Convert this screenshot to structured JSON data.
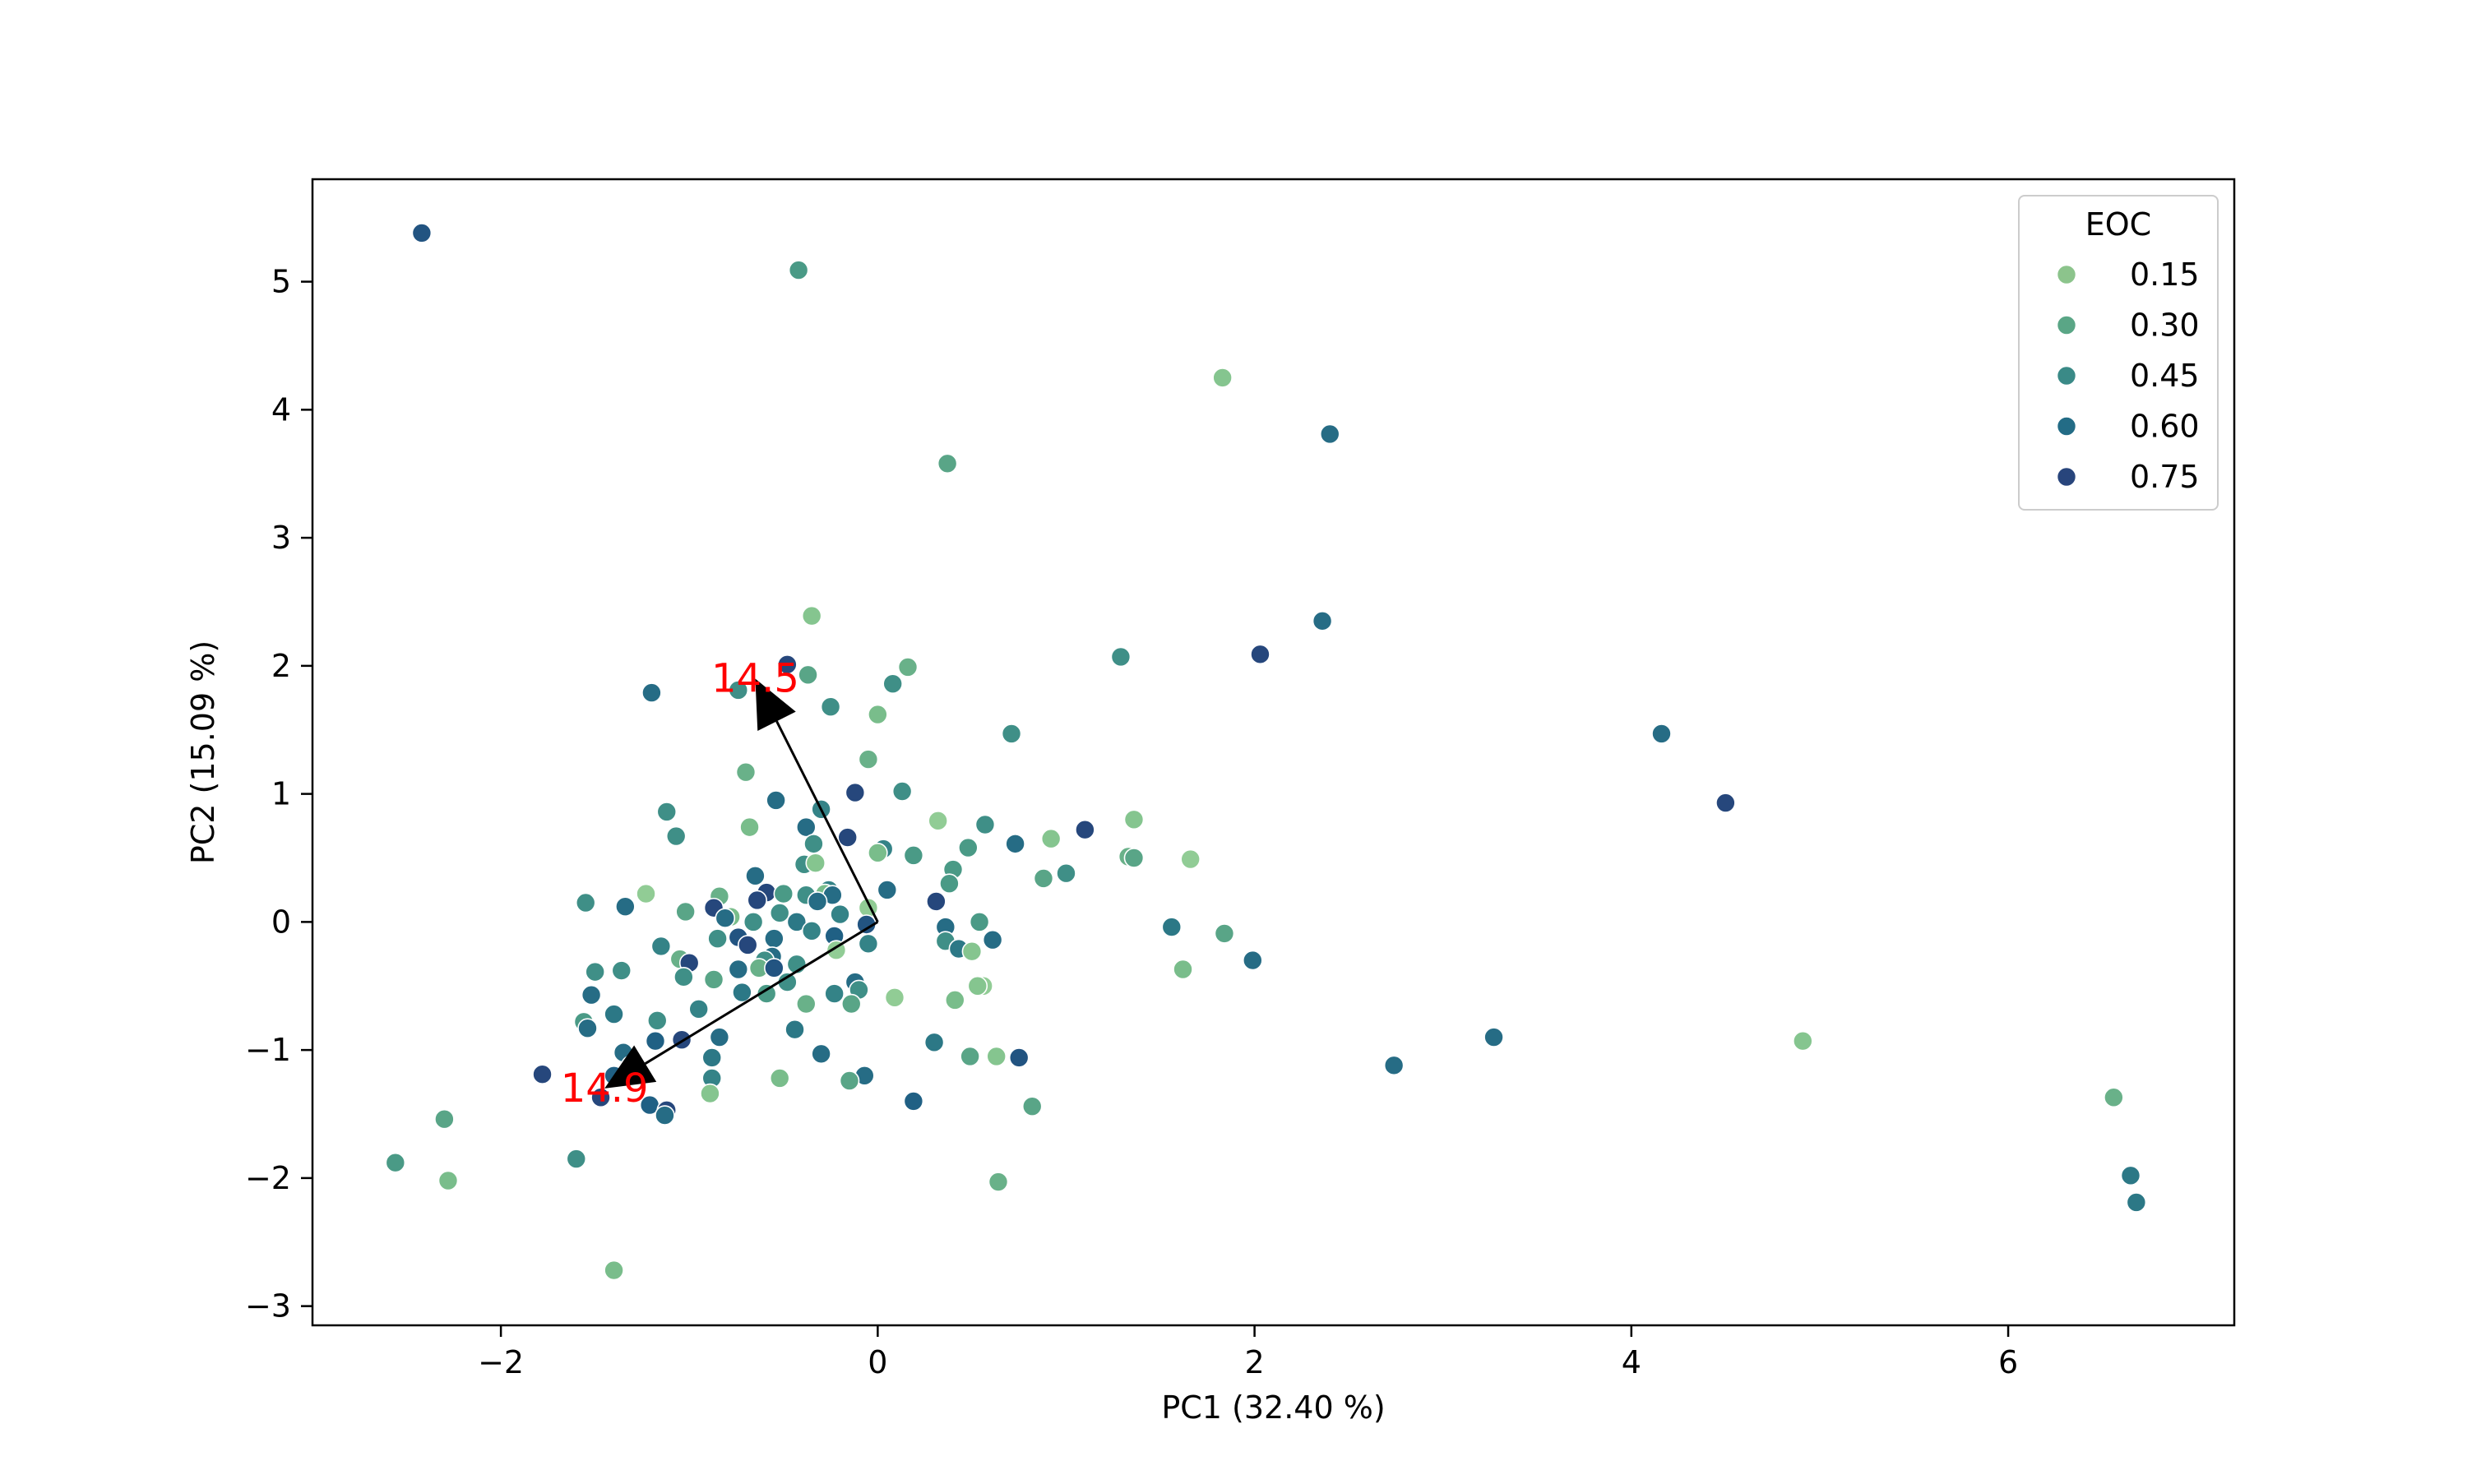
{
  "chart_data": {
    "type": "scatter",
    "xlabel": "PC1 (32.40 %)",
    "ylabel": "PC2 (15.09 %)",
    "xlim": [
      -3.0,
      7.2
    ],
    "ylim": [
      -3.15,
      5.8
    ],
    "xticks": [
      -2,
      0,
      2,
      4,
      6
    ],
    "yticks": [
      -3,
      -2,
      -1,
      0,
      1,
      2,
      3,
      4,
      5
    ],
    "xtick_labels": [
      "−2",
      "0",
      "2",
      "4",
      "6"
    ],
    "ytick_labels": [
      "−3",
      "−2",
      "−1",
      "0",
      "1",
      "2",
      "3",
      "4",
      "5"
    ],
    "grid": false,
    "legend": {
      "title": "EOC",
      "placement": "top-right",
      "entries": [
        {
          "label": "0.15",
          "value": 0.15,
          "color": "#8cc48c"
        },
        {
          "label": "0.30",
          "value": 0.3,
          "color": "#5aa686"
        },
        {
          "label": "0.45",
          "value": 0.45,
          "color": "#3a8a87"
        },
        {
          "label": "0.60",
          "value": 0.6,
          "color": "#236c86"
        },
        {
          "label": "0.75",
          "value": 0.75,
          "color": "#28457c"
        }
      ]
    },
    "colormap": {
      "range": [
        0.1,
        0.8
      ],
      "stops": [
        "#9dd39a",
        "#7cbf8b",
        "#4f9e86",
        "#2f7f87",
        "#1f5e84",
        "#2a3a78"
      ]
    },
    "loading_vectors": [
      {
        "label": "14.5",
        "from": [
          0,
          0
        ],
        "to": [
          -0.65,
          1.9
        ],
        "label_color": "#ff0000"
      },
      {
        "label": "14.9",
        "from": [
          0,
          0
        ],
        "to": [
          -1.45,
          -1.3
        ],
        "label_color": "#ff0000"
      }
    ],
    "points": [
      {
        "x": -2.42,
        "y": 5.38,
        "eoc": 0.7
      },
      {
        "x": -0.42,
        "y": 5.09,
        "eoc": 0.4
      },
      {
        "x": 1.83,
        "y": 4.25,
        "eoc": 0.2
      },
      {
        "x": 2.4,
        "y": 3.81,
        "eoc": 0.6
      },
      {
        "x": 0.37,
        "y": 3.58,
        "eoc": 0.35
      },
      {
        "x": -0.35,
        "y": 2.39,
        "eoc": 0.2
      },
      {
        "x": 2.36,
        "y": 2.35,
        "eoc": 0.6
      },
      {
        "x": 2.03,
        "y": 2.09,
        "eoc": 0.75
      },
      {
        "x": 1.29,
        "y": 2.07,
        "eoc": 0.45
      },
      {
        "x": -0.48,
        "y": 2.01,
        "eoc": 0.75
      },
      {
        "x": 0.16,
        "y": 1.99,
        "eoc": 0.3
      },
      {
        "x": -0.37,
        "y": 1.93,
        "eoc": 0.35
      },
      {
        "x": 0.08,
        "y": 1.86,
        "eoc": 0.45
      },
      {
        "x": -1.2,
        "y": 1.79,
        "eoc": 0.6
      },
      {
        "x": -0.74,
        "y": 1.81,
        "eoc": 0.45
      },
      {
        "x": -0.25,
        "y": 1.68,
        "eoc": 0.45
      },
      {
        "x": 0.0,
        "y": 1.62,
        "eoc": 0.25
      },
      {
        "x": 0.71,
        "y": 1.47,
        "eoc": 0.45
      },
      {
        "x": 4.16,
        "y": 1.47,
        "eoc": 0.6
      },
      {
        "x": -0.05,
        "y": 1.27,
        "eoc": 0.3
      },
      {
        "x": -0.7,
        "y": 1.17,
        "eoc": 0.3
      },
      {
        "x": 0.13,
        "y": 1.02,
        "eoc": 0.45
      },
      {
        "x": -0.12,
        "y": 1.01,
        "eoc": 0.75
      },
      {
        "x": -0.54,
        "y": 0.95,
        "eoc": 0.6
      },
      {
        "x": 4.5,
        "y": 0.93,
        "eoc": 0.75
      },
      {
        "x": -1.12,
        "y": 0.86,
        "eoc": 0.45
      },
      {
        "x": -0.3,
        "y": 0.88,
        "eoc": 0.5
      },
      {
        "x": 1.36,
        "y": 0.8,
        "eoc": 0.2
      },
      {
        "x": 0.32,
        "y": 0.79,
        "eoc": 0.15
      },
      {
        "x": 0.57,
        "y": 0.76,
        "eoc": 0.45
      },
      {
        "x": -0.38,
        "y": 0.74,
        "eoc": 0.6
      },
      {
        "x": -0.68,
        "y": 0.74,
        "eoc": 0.25
      },
      {
        "x": 1.1,
        "y": 0.72,
        "eoc": 0.75
      },
      {
        "x": -1.07,
        "y": 0.67,
        "eoc": 0.45
      },
      {
        "x": -0.16,
        "y": 0.66,
        "eoc": 0.75
      },
      {
        "x": 0.92,
        "y": 0.65,
        "eoc": 0.2
      },
      {
        "x": 0.73,
        "y": 0.61,
        "eoc": 0.6
      },
      {
        "x": -0.34,
        "y": 0.61,
        "eoc": 0.45
      },
      {
        "x": 0.48,
        "y": 0.58,
        "eoc": 0.4
      },
      {
        "x": 0.03,
        "y": 0.57,
        "eoc": 0.5
      },
      {
        "x": 0.0,
        "y": 0.54,
        "eoc": 0.25
      },
      {
        "x": 0.19,
        "y": 0.52,
        "eoc": 0.4
      },
      {
        "x": 1.33,
        "y": 0.51,
        "eoc": 0.3
      },
      {
        "x": 1.36,
        "y": 0.5,
        "eoc": 0.35
      },
      {
        "x": 1.66,
        "y": 0.49,
        "eoc": 0.15
      },
      {
        "x": -0.39,
        "y": 0.45,
        "eoc": 0.45
      },
      {
        "x": -0.33,
        "y": 0.46,
        "eoc": 0.2
      },
      {
        "x": 0.4,
        "y": 0.41,
        "eoc": 0.4
      },
      {
        "x": 1.0,
        "y": 0.38,
        "eoc": 0.45
      },
      {
        "x": -0.65,
        "y": 0.36,
        "eoc": 0.6
      },
      {
        "x": 0.88,
        "y": 0.34,
        "eoc": 0.35
      },
      {
        "x": 0.38,
        "y": 0.3,
        "eoc": 0.4
      },
      {
        "x": -0.26,
        "y": 0.25,
        "eoc": 0.5
      },
      {
        "x": 0.05,
        "y": 0.25,
        "eoc": 0.6
      },
      {
        "x": -0.59,
        "y": 0.23,
        "eoc": 0.75
      },
      {
        "x": -0.5,
        "y": 0.22,
        "eoc": 0.4
      },
      {
        "x": -0.28,
        "y": 0.22,
        "eoc": 0.25
      },
      {
        "x": -0.38,
        "y": 0.21,
        "eoc": 0.45
      },
      {
        "x": -0.24,
        "y": 0.21,
        "eoc": 0.6
      },
      {
        "x": -1.23,
        "y": 0.22,
        "eoc": 0.15
      },
      {
        "x": -0.84,
        "y": 0.2,
        "eoc": 0.3
      },
      {
        "x": -0.64,
        "y": 0.17,
        "eoc": 0.75
      },
      {
        "x": -0.32,
        "y": 0.16,
        "eoc": 0.6
      },
      {
        "x": 0.31,
        "y": 0.16,
        "eoc": 0.75
      },
      {
        "x": -1.55,
        "y": 0.15,
        "eoc": 0.45
      },
      {
        "x": -1.34,
        "y": 0.12,
        "eoc": 0.6
      },
      {
        "x": -0.87,
        "y": 0.11,
        "eoc": 0.75
      },
      {
        "x": -0.05,
        "y": 0.11,
        "eoc": 0.15
      },
      {
        "x": -1.02,
        "y": 0.08,
        "eoc": 0.35
      },
      {
        "x": -0.52,
        "y": 0.07,
        "eoc": 0.45
      },
      {
        "x": -0.2,
        "y": 0.06,
        "eoc": 0.5
      },
      {
        "x": -0.78,
        "y": 0.04,
        "eoc": 0.25
      },
      {
        "x": -0.81,
        "y": 0.03,
        "eoc": 0.6
      },
      {
        "x": -0.66,
        "y": 0.0,
        "eoc": 0.45
      },
      {
        "x": -0.43,
        "y": 0.0,
        "eoc": 0.55
      },
      {
        "x": 0.54,
        "y": 0.0,
        "eoc": 0.4
      },
      {
        "x": -0.06,
        "y": -0.02,
        "eoc": 0.7
      },
      {
        "x": 0.36,
        "y": -0.04,
        "eoc": 0.6
      },
      {
        "x": 1.56,
        "y": -0.04,
        "eoc": 0.55
      },
      {
        "x": -0.35,
        "y": -0.07,
        "eoc": 0.5
      },
      {
        "x": 1.84,
        "y": -0.09,
        "eoc": 0.35
      },
      {
        "x": -0.23,
        "y": -0.11,
        "eoc": 0.65
      },
      {
        "x": -0.74,
        "y": -0.12,
        "eoc": 0.7
      },
      {
        "x": -0.55,
        "y": -0.13,
        "eoc": 0.6
      },
      {
        "x": -0.85,
        "y": -0.13,
        "eoc": 0.45
      },
      {
        "x": 0.61,
        "y": -0.14,
        "eoc": 0.6
      },
      {
        "x": 0.36,
        "y": -0.15,
        "eoc": 0.45
      },
      {
        "x": -0.05,
        "y": -0.17,
        "eoc": 0.5
      },
      {
        "x": -0.69,
        "y": -0.18,
        "eoc": 0.75
      },
      {
        "x": -1.15,
        "y": -0.19,
        "eoc": 0.5
      },
      {
        "x": 0.43,
        "y": -0.21,
        "eoc": 0.55
      },
      {
        "x": -0.22,
        "y": -0.22,
        "eoc": 0.15
      },
      {
        "x": 0.5,
        "y": -0.23,
        "eoc": 0.2
      },
      {
        "x": -0.56,
        "y": -0.27,
        "eoc": 0.6
      },
      {
        "x": -1.05,
        "y": -0.29,
        "eoc": 0.3
      },
      {
        "x": -0.6,
        "y": -0.3,
        "eoc": 0.45
      },
      {
        "x": 1.99,
        "y": -0.3,
        "eoc": 0.6
      },
      {
        "x": -1.0,
        "y": -0.32,
        "eoc": 0.75
      },
      {
        "x": -0.43,
        "y": -0.33,
        "eoc": 0.45
      },
      {
        "x": -0.63,
        "y": -0.36,
        "eoc": 0.3
      },
      {
        "x": -0.55,
        "y": -0.36,
        "eoc": 0.7
      },
      {
        "x": -0.74,
        "y": -0.37,
        "eoc": 0.6
      },
      {
        "x": 1.62,
        "y": -0.37,
        "eoc": 0.25
      },
      {
        "x": -1.5,
        "y": -0.39,
        "eoc": 0.45
      },
      {
        "x": -1.36,
        "y": -0.38,
        "eoc": 0.45
      },
      {
        "x": -1.03,
        "y": -0.43,
        "eoc": 0.45
      },
      {
        "x": -0.87,
        "y": -0.45,
        "eoc": 0.35
      },
      {
        "x": -0.12,
        "y": -0.47,
        "eoc": 0.6
      },
      {
        "x": -0.48,
        "y": -0.47,
        "eoc": 0.45
      },
      {
        "x": 0.56,
        "y": -0.5,
        "eoc": 0.15
      },
      {
        "x": 0.53,
        "y": -0.5,
        "eoc": 0.2
      },
      {
        "x": -0.1,
        "y": -0.53,
        "eoc": 0.45
      },
      {
        "x": -0.72,
        "y": -0.55,
        "eoc": 0.55
      },
      {
        "x": -0.59,
        "y": -0.56,
        "eoc": 0.4
      },
      {
        "x": -0.23,
        "y": -0.56,
        "eoc": 0.5
      },
      {
        "x": -1.52,
        "y": -0.57,
        "eoc": 0.6
      },
      {
        "x": 0.09,
        "y": -0.59,
        "eoc": 0.15
      },
      {
        "x": 0.41,
        "y": -0.61,
        "eoc": 0.25
      },
      {
        "x": -0.38,
        "y": -0.64,
        "eoc": 0.3
      },
      {
        "x": -0.14,
        "y": -0.64,
        "eoc": 0.35
      },
      {
        "x": -0.95,
        "y": -0.68,
        "eoc": 0.5
      },
      {
        "x": -1.4,
        "y": -0.72,
        "eoc": 0.55
      },
      {
        "x": -1.17,
        "y": -0.77,
        "eoc": 0.45
      },
      {
        "x": -1.56,
        "y": -0.78,
        "eoc": 0.4
      },
      {
        "x": -1.54,
        "y": -0.83,
        "eoc": 0.6
      },
      {
        "x": -0.44,
        "y": -0.84,
        "eoc": 0.55
      },
      {
        "x": -0.84,
        "y": -0.9,
        "eoc": 0.6
      },
      {
        "x": 3.27,
        "y": -0.9,
        "eoc": 0.6
      },
      {
        "x": -1.04,
        "y": -0.92,
        "eoc": 0.75
      },
      {
        "x": 4.91,
        "y": -0.93,
        "eoc": 0.2
      },
      {
        "x": -1.18,
        "y": -0.93,
        "eoc": 0.65
      },
      {
        "x": 0.3,
        "y": -0.94,
        "eoc": 0.55
      },
      {
        "x": -0.3,
        "y": -1.03,
        "eoc": 0.6
      },
      {
        "x": 0.49,
        "y": -1.05,
        "eoc": 0.35
      },
      {
        "x": 0.63,
        "y": -1.05,
        "eoc": 0.2
      },
      {
        "x": 0.75,
        "y": -1.06,
        "eoc": 0.7
      },
      {
        "x": -0.88,
        "y": -1.06,
        "eoc": 0.55
      },
      {
        "x": -1.35,
        "y": -1.02,
        "eoc": 0.6
      },
      {
        "x": 2.74,
        "y": -1.12,
        "eoc": 0.6
      },
      {
        "x": -1.31,
        "y": -1.12,
        "eoc": 0.55
      },
      {
        "x": -1.78,
        "y": -1.19,
        "eoc": 0.75
      },
      {
        "x": -1.4,
        "y": -1.2,
        "eoc": 0.65
      },
      {
        "x": -0.88,
        "y": -1.22,
        "eoc": 0.5
      },
      {
        "x": -0.52,
        "y": -1.22,
        "eoc": 0.25
      },
      {
        "x": -0.07,
        "y": -1.2,
        "eoc": 0.6
      },
      {
        "x": -0.15,
        "y": -1.24,
        "eoc": 0.35
      },
      {
        "x": -0.89,
        "y": -1.34,
        "eoc": 0.2
      },
      {
        "x": -1.47,
        "y": -1.37,
        "eoc": 0.75
      },
      {
        "x": 6.56,
        "y": -1.37,
        "eoc": 0.3
      },
      {
        "x": 0.19,
        "y": -1.4,
        "eoc": 0.65
      },
      {
        "x": 0.82,
        "y": -1.44,
        "eoc": 0.35
      },
      {
        "x": -1.21,
        "y": -1.43,
        "eoc": 0.65
      },
      {
        "x": -1.12,
        "y": -1.47,
        "eoc": 0.75
      },
      {
        "x": -1.13,
        "y": -1.51,
        "eoc": 0.6
      },
      {
        "x": -2.3,
        "y": -1.54,
        "eoc": 0.35
      },
      {
        "x": -1.6,
        "y": -1.85,
        "eoc": 0.45
      },
      {
        "x": -2.56,
        "y": -1.88,
        "eoc": 0.4
      },
      {
        "x": 6.65,
        "y": -1.98,
        "eoc": 0.55
      },
      {
        "x": -2.28,
        "y": -2.02,
        "eoc": 0.25
      },
      {
        "x": 0.64,
        "y": -2.03,
        "eoc": 0.3
      },
      {
        "x": 6.68,
        "y": -2.19,
        "eoc": 0.55
      },
      {
        "x": -1.4,
        "y": -2.72,
        "eoc": 0.25
      }
    ]
  }
}
